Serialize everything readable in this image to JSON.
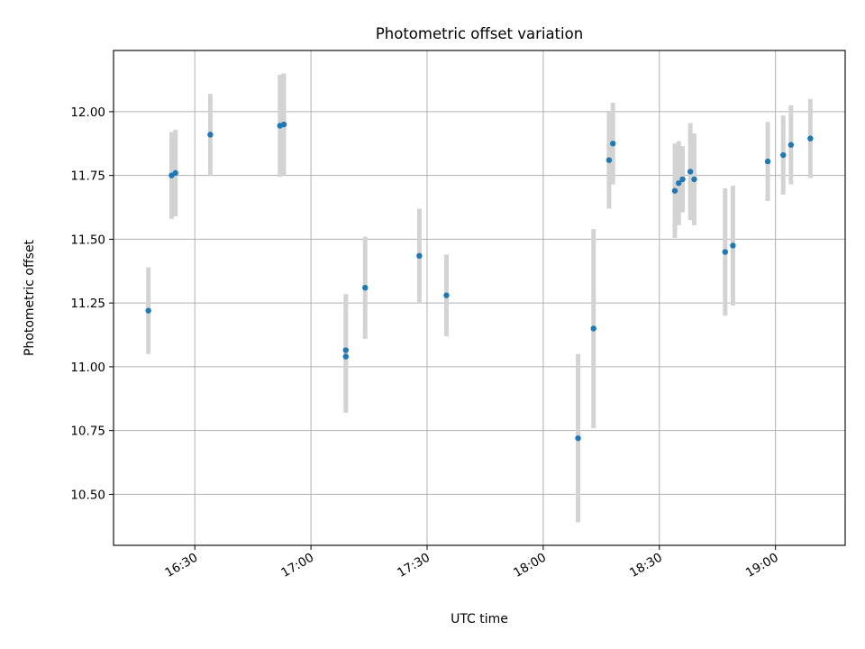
{
  "chart_data": {
    "type": "scatter",
    "title": "Photometric offset variation",
    "xlabel": "UTC time",
    "ylabel": "Photometric offset",
    "xlim": [
      "16:09",
      "19:18"
    ],
    "ylim": [
      10.3,
      12.24
    ],
    "x_ticks": [
      "16:30",
      "17:00",
      "17:30",
      "18:00",
      "18:30",
      "19:00"
    ],
    "y_ticks": [
      "10.50",
      "10.75",
      "11.00",
      "11.25",
      "11.50",
      "11.75",
      "12.00"
    ],
    "grid": true,
    "marker_color": "#1f77b4",
    "errorbar_color": "#d3d3d3",
    "points": [
      {
        "x": "16:18",
        "y": 11.22,
        "err": 0.17
      },
      {
        "x": "16:24",
        "y": 11.75,
        "err": 0.17
      },
      {
        "x": "16:25",
        "y": 11.76,
        "err": 0.17
      },
      {
        "x": "16:34",
        "y": 11.91,
        "err": 0.16
      },
      {
        "x": "16:52",
        "y": 11.945,
        "err": 0.2
      },
      {
        "x": "16:53",
        "y": 11.95,
        "err": 0.2
      },
      {
        "x": "17:09",
        "y": 11.065,
        "err": 0.22
      },
      {
        "x": "17:09",
        "y": 11.04,
        "err": 0.22
      },
      {
        "x": "17:14",
        "y": 11.31,
        "err": 0.2
      },
      {
        "x": "17:28",
        "y": 11.435,
        "err": 0.185
      },
      {
        "x": "17:35",
        "y": 11.28,
        "err": 0.16
      },
      {
        "x": "18:09",
        "y": 10.72,
        "err": 0.33
      },
      {
        "x": "18:13",
        "y": 11.15,
        "err": 0.39
      },
      {
        "x": "18:17",
        "y": 11.81,
        "err": 0.19
      },
      {
        "x": "18:18",
        "y": 11.875,
        "err": 0.16
      },
      {
        "x": "18:34",
        "y": 11.69,
        "err": 0.185
      },
      {
        "x": "18:35",
        "y": 11.72,
        "err": 0.165
      },
      {
        "x": "18:36",
        "y": 11.735,
        "err": 0.13
      },
      {
        "x": "18:38",
        "y": 11.765,
        "err": 0.19
      },
      {
        "x": "18:39",
        "y": 11.735,
        "err": 0.18
      },
      {
        "x": "18:47",
        "y": 11.45,
        "err": 0.25
      },
      {
        "x": "18:49",
        "y": 11.475,
        "err": 0.235
      },
      {
        "x": "18:58",
        "y": 11.805,
        "err": 0.155
      },
      {
        "x": "19:02",
        "y": 11.83,
        "err": 0.155
      },
      {
        "x": "19:04",
        "y": 11.87,
        "err": 0.155
      },
      {
        "x": "19:09",
        "y": 11.895,
        "err": 0.155
      }
    ]
  }
}
